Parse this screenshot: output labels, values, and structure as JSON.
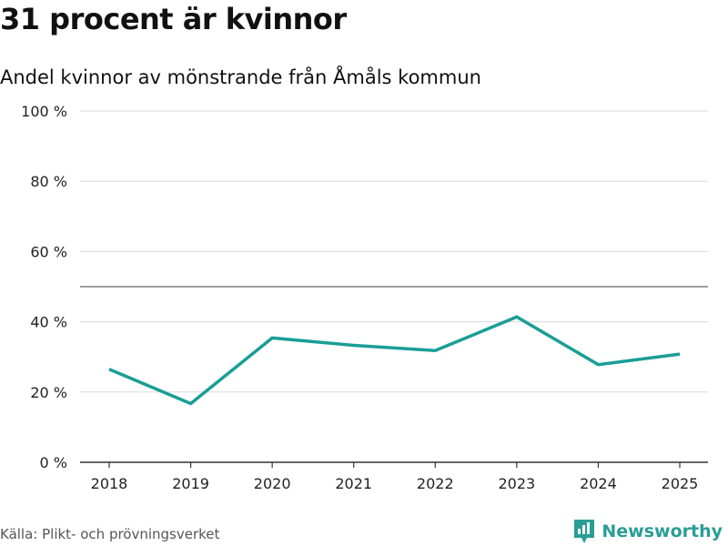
{
  "header": {
    "title": "31 procent är kvinnor",
    "subtitle": "Andel kvinnor av mönstrande från Åmåls kommun"
  },
  "chart_data": {
    "type": "line",
    "x": [
      "2018",
      "2019",
      "2020",
      "2021",
      "2022",
      "2023",
      "2024",
      "2025"
    ],
    "series": [
      {
        "name": "Andel kvinnor",
        "values": [
          26.5,
          16.7,
          35.4,
          33.3,
          31.8,
          41.4,
          27.8,
          30.8
        ],
        "color": "#1a9e96"
      }
    ],
    "y_ticks": [
      {
        "value": 0,
        "label": "0 %"
      },
      {
        "value": 20,
        "label": "20 %"
      },
      {
        "value": 40,
        "label": "40 %"
      },
      {
        "value": 60,
        "label": "60 %"
      },
      {
        "value": 80,
        "label": "80 %"
      },
      {
        "value": 100,
        "label": "100 %"
      }
    ],
    "ylim": [
      0,
      100
    ],
    "reference_line": 50,
    "grid": true,
    "legend": "none",
    "colors": {
      "grid": "#d9d9d9",
      "reference": "#666666",
      "axis": "#333333"
    }
  },
  "footer": {
    "source": "Källa: Plikt- och prövningsverket",
    "brand": "Newsworthy",
    "brand_icon": "newsworthy-logo-icon",
    "brand_color": "#2a9d96"
  }
}
